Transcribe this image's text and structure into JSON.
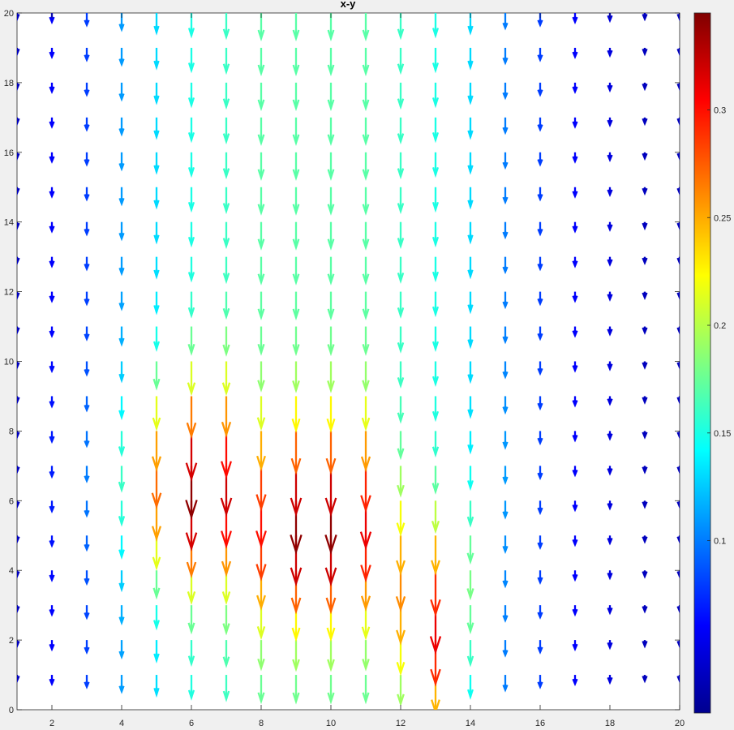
{
  "chart_data": {
    "type": "quiver",
    "title": "x-y",
    "xlabel": "",
    "ylabel": "",
    "xlim": [
      1,
      20
    ],
    "ylim": [
      0,
      20
    ],
    "xticks": [
      2,
      4,
      6,
      8,
      10,
      12,
      14,
      16,
      18,
      20
    ],
    "yticks": [
      0,
      2,
      4,
      6,
      8,
      10,
      12,
      14,
      16,
      18,
      20
    ],
    "grid": false,
    "colormap": "jet",
    "colorbar": {
      "location": "right",
      "range": [
        0.02,
        0.345
      ],
      "ticks": [
        0.1,
        0.15,
        0.2,
        0.25,
        0.3
      ],
      "tick_labels": [
        "0.1",
        "0.15",
        "0.2",
        "0.25",
        "0.3"
      ]
    },
    "vector_field": {
      "x": [
        1,
        2,
        3,
        4,
        5,
        6,
        7,
        8,
        9,
        10,
        11,
        12,
        13,
        14,
        15,
        16,
        17,
        18,
        19,
        20
      ],
      "y": [
        1,
        2,
        3,
        4,
        5,
        6,
        7,
        8,
        9,
        10,
        11,
        12,
        13,
        14,
        15,
        16,
        17,
        18,
        19,
        20
      ],
      "u": 0,
      "v_description": "All vectors point in the negative y direction; magnitudes vary by grid point",
      "magnitude_profile": {
        "column_x": [
          1,
          2,
          3,
          4,
          5,
          6,
          7,
          8,
          9,
          10,
          11,
          12,
          13,
          14,
          15,
          16,
          17,
          18,
          19,
          20
        ],
        "base_magnitude": [
          0.04,
          0.06,
          0.08,
          0.11,
          0.13,
          0.15,
          0.16,
          0.17,
          0.17,
          0.17,
          0.17,
          0.16,
          0.15,
          0.13,
          0.1,
          0.08,
          0.06,
          0.05,
          0.04,
          0.04
        ],
        "peak_magnitude": [
          0.04,
          0.07,
          0.1,
          0.16,
          0.27,
          0.34,
          0.32,
          0.3,
          0.34,
          0.34,
          0.31,
          0.26,
          0.31,
          0.18,
          0.11,
          0.08,
          0.06,
          0.05,
          0.04,
          0.04
        ],
        "peak_y": [
          7,
          7,
          7,
          7,
          7,
          7,
          7,
          6,
          6,
          6,
          6,
          4,
          3,
          4,
          7,
          7,
          7,
          7,
          7,
          7
        ]
      }
    }
  }
}
